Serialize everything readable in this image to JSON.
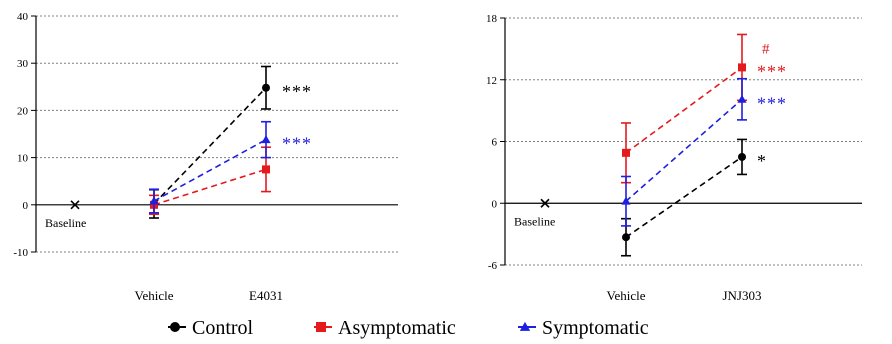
{
  "colors": {
    "control": "#000000",
    "asymptomatic": "#e41a1c",
    "symptomatic": "#1f1fe0",
    "grid": "#808080"
  },
  "legend": {
    "placement": "bottom-center",
    "items": [
      {
        "label": "Control",
        "series": "Control",
        "marker": "circle"
      },
      {
        "label": "Asymptomatic",
        "series": "Asymptomatic",
        "marker": "square"
      },
      {
        "label": "Symptomatic",
        "series": "Symptomatic",
        "marker": "triangle"
      }
    ]
  },
  "chart_data": [
    {
      "type": "line",
      "title": "",
      "xlabel": "",
      "ylabel": "",
      "grid": "horizontal dashed",
      "ylim": [
        -10,
        40
      ],
      "yticks": [
        "-10",
        "0",
        "10",
        "20",
        "30",
        "40"
      ],
      "baseline": {
        "label": "Baseline",
        "marker": "x",
        "value": 0
      },
      "categories": [
        "Vehicle",
        "E4031"
      ],
      "series": [
        {
          "name": "Control",
          "marker": "circle",
          "values": [
            0.2,
            24.8
          ],
          "errors": [
            3.0,
            4.5
          ]
        },
        {
          "name": "Asymptomatic",
          "marker": "square",
          "values": [
            0.0,
            7.5
          ],
          "errors": [
            2.0,
            4.7
          ]
        },
        {
          "name": "Symptomatic",
          "marker": "triangle",
          "values": [
            0.8,
            13.8
          ],
          "errors": [
            2.5,
            3.8
          ]
        }
      ],
      "annotations": [
        {
          "text": "***",
          "series": "Control",
          "category": "E4031"
        },
        {
          "text": "***",
          "series": "Symptomatic",
          "category": "E4031"
        }
      ]
    },
    {
      "type": "line",
      "title": "",
      "xlabel": "",
      "ylabel": "",
      "grid": "horizontal dashed",
      "ylim": [
        -6,
        18
      ],
      "yticks": [
        "-6",
        "0",
        "6",
        "12",
        "18"
      ],
      "baseline": {
        "label": "Baseline",
        "marker": "x",
        "value": 0
      },
      "categories": [
        "Vehicle",
        "JNJ303"
      ],
      "series": [
        {
          "name": "Control",
          "marker": "circle",
          "values": [
            -3.3,
            4.5
          ],
          "errors": [
            1.8,
            1.7
          ]
        },
        {
          "name": "Asymptomatic",
          "marker": "square",
          "values": [
            4.9,
            13.2
          ],
          "errors": [
            2.9,
            3.2
          ]
        },
        {
          "name": "Symptomatic",
          "marker": "triangle",
          "values": [
            0.2,
            10.1
          ],
          "errors": [
            2.4,
            2.0
          ]
        }
      ],
      "annotations": [
        {
          "text": "#",
          "series": "Asymptomatic",
          "category": "JNJ303",
          "offset": "above"
        },
        {
          "text": "***",
          "series": "Asymptomatic",
          "category": "JNJ303"
        },
        {
          "text": "***",
          "series": "Symptomatic",
          "category": "JNJ303"
        },
        {
          "text": "*",
          "series": "Control",
          "category": "JNJ303"
        }
      ]
    }
  ]
}
